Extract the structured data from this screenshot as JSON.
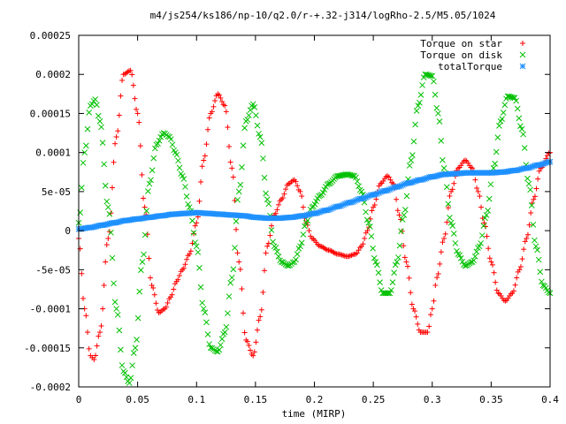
{
  "chart_data": {
    "type": "scatter",
    "title": "m4/js254/ks186/np-10/q2.0/r-+.32-j314/logRho-2.5/M5.05/1024",
    "xlabel": "time (MIRP)",
    "ylabel": "",
    "xlim": [
      0,
      0.4
    ],
    "ylim": [
      -0.0002,
      0.00025
    ],
    "x_ticks": [
      0,
      0.05,
      0.1,
      0.15,
      0.2,
      0.25,
      0.3,
      0.35,
      0.4
    ],
    "x_tick_labels": [
      "0",
      "0.05",
      "0.1",
      "0.15",
      "0.2",
      "0.25",
      "0.3",
      "0.35",
      "0.4"
    ],
    "y_ticks": [
      -0.0002,
      -0.00015,
      -0.0001,
      -5e-05,
      0,
      5e-05,
      0.0001,
      0.00015,
      0.0002,
      0.00025
    ],
    "y_tick_labels": [
      "-0.0002",
      "-0.00015",
      "-0.0001",
      "-5e-05",
      "0",
      "5e-05",
      "0.0001",
      "0.00015",
      "0.0002",
      "0.00025"
    ],
    "grid": false,
    "legend_position": "top-right",
    "series": [
      {
        "name": "Torque on star",
        "marker": "plus",
        "color": "#ff0000",
        "x": [
          0,
          0.005,
          0.01,
          0.013,
          0.018,
          0.025,
          0.032,
          0.038,
          0.044,
          0.05,
          0.056,
          0.062,
          0.068,
          0.073,
          0.078,
          0.083,
          0.088,
          0.094,
          0.1,
          0.106,
          0.112,
          0.118,
          0.124,
          0.13,
          0.136,
          0.142,
          0.148,
          0.154,
          0.16,
          0.166,
          0.172,
          0.178,
          0.183,
          0.188,
          0.193,
          0.198,
          0.205,
          0.212,
          0.22,
          0.228,
          0.235,
          0.24,
          0.245,
          0.25,
          0.256,
          0.262,
          0.267,
          0.272,
          0.278,
          0.284,
          0.29,
          0.296,
          0.3,
          0.304,
          0.31,
          0.316,
          0.322,
          0.328,
          0.334,
          0.339,
          0.344,
          0.35,
          0.356,
          0.362,
          0.368,
          0.374,
          0.38,
          0.386,
          0.392,
          0.4
        ],
        "y": [
          -1e-05,
          -0.0001,
          -0.00016,
          -0.000165,
          -0.00013,
          -1e-05,
          0.00012,
          0.0002,
          0.000205,
          0.00015,
          3e-05,
          -7e-05,
          -0.000105,
          -0.0001,
          -8.5e-05,
          -6.5e-05,
          -5e-05,
          -3e-05,
          1e-05,
          9e-05,
          0.00015,
          0.000175,
          0.00016,
          8e-05,
          -4e-05,
          -0.00014,
          -0.00016,
          -0.00011,
          -2e-05,
          2e-05,
          4e-05,
          6e-05,
          6.5e-05,
          5e-05,
          1e-05,
          -1e-05,
          -2e-05,
          -2.5e-05,
          -3e-05,
          -3.3e-05,
          -3e-05,
          -2e-05,
          0,
          3e-05,
          6e-05,
          7e-05,
          6e-05,
          2e-05,
          -4e-05,
          -0.0001,
          -0.00013,
          -0.00013,
          -0.0001,
          -6e-05,
          -1e-05,
          5e-05,
          8e-05,
          9e-05,
          8e-05,
          5e-05,
          1e-05,
          -4e-05,
          -8e-05,
          -9e-05,
          -8e-05,
          -5e-05,
          -1e-05,
          4e-05,
          8e-05,
          0.0001
        ]
      },
      {
        "name": "Torque on disk",
        "marker": "cross",
        "color": "#00c000",
        "x": [
          0,
          0.005,
          0.01,
          0.014,
          0.018,
          0.025,
          0.032,
          0.038,
          0.043,
          0.048,
          0.054,
          0.06,
          0.066,
          0.072,
          0.077,
          0.082,
          0.088,
          0.094,
          0.1,
          0.106,
          0.112,
          0.118,
          0.124,
          0.13,
          0.136,
          0.142,
          0.148,
          0.154,
          0.16,
          0.166,
          0.172,
          0.178,
          0.183,
          0.188,
          0.193,
          0.198,
          0.205,
          0.212,
          0.22,
          0.228,
          0.234,
          0.24,
          0.246,
          0.252,
          0.258,
          0.264,
          0.27,
          0.276,
          0.282,
          0.288,
          0.294,
          0.3,
          0.305,
          0.31,
          0.316,
          0.322,
          0.328,
          0.334,
          0.34,
          0.346,
          0.352,
          0.358,
          0.364,
          0.37,
          0.376,
          0.382,
          0.388,
          0.394,
          0.4
        ],
        "y": [
          1e-05,
          0.0001,
          0.00016,
          0.000168,
          0.00014,
          3e-05,
          -0.0001,
          -0.00018,
          -0.000195,
          -0.00015,
          -4e-05,
          6e-05,
          0.00011,
          0.000125,
          0.00012,
          0.0001,
          7e-05,
          3e-05,
          -2e-05,
          -0.0001,
          -0.00015,
          -0.000155,
          -0.00013,
          -6e-05,
          5e-05,
          0.00014,
          0.000162,
          0.00012,
          4e-05,
          -2e-05,
          -4e-05,
          -4.5e-05,
          -4e-05,
          -2e-05,
          1e-05,
          3e-05,
          4.5e-05,
          6e-05,
          7e-05,
          7.2e-05,
          7e-05,
          5e-05,
          1e-05,
          -4e-05,
          -8e-05,
          -8e-05,
          -4e-05,
          2e-05,
          9e-05,
          0.00016,
          0.0002,
          0.000198,
          0.00015,
          8e-05,
          1e-05,
          -3e-05,
          -4.5e-05,
          -4e-05,
          -2e-05,
          2e-05,
          8e-05,
          0.00014,
          0.000172,
          0.00017,
          0.00013,
          6e-05,
          -2e-05,
          -7e-05,
          -8e-05
        ]
      },
      {
        "name": "totalTorque",
        "marker": "star",
        "color": "#1e90ff",
        "x": [
          0,
          0.01,
          0.02,
          0.03,
          0.04,
          0.05,
          0.06,
          0.07,
          0.08,
          0.09,
          0.1,
          0.11,
          0.12,
          0.13,
          0.14,
          0.15,
          0.16,
          0.17,
          0.18,
          0.19,
          0.2,
          0.21,
          0.22,
          0.23,
          0.24,
          0.25,
          0.26,
          0.27,
          0.28,
          0.29,
          0.3,
          0.31,
          0.32,
          0.33,
          0.34,
          0.35,
          0.36,
          0.37,
          0.38,
          0.39,
          0.4
        ],
        "y": [
          2e-06,
          4e-06,
          7e-06,
          1e-05,
          1.3e-05,
          1.5e-05,
          1.7e-05,
          1.9e-05,
          2.1e-05,
          2.2e-05,
          2.3e-05,
          2.2e-05,
          2.1e-05,
          2e-05,
          1.9e-05,
          1.7e-05,
          1.6e-05,
          1.6e-05,
          1.7e-05,
          1.9e-05,
          2.2e-05,
          2.6e-05,
          3.1e-05,
          3.6e-05,
          4.1e-05,
          4.6e-05,
          5.1e-05,
          5.6e-05,
          6.1e-05,
          6.5e-05,
          6.9e-05,
          7.2e-05,
          7.3e-05,
          7.4e-05,
          7.4e-05,
          7.4e-05,
          7.5e-05,
          7.7e-05,
          8e-05,
          8.4e-05,
          8.8e-05
        ]
      }
    ]
  }
}
